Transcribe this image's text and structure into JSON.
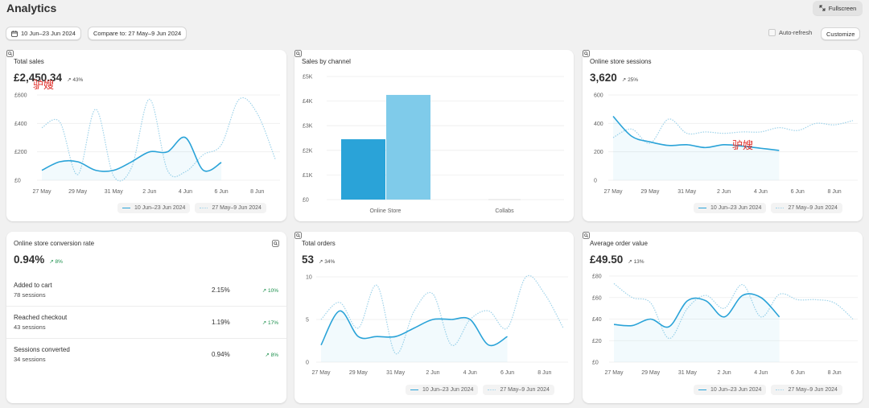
{
  "header": {
    "title": "Analytics",
    "fullscreen_label": "Fullscreen",
    "date_range": "10 Jun–23 Jun 2024",
    "compare": "Compare to: 27 May–9 Jun 2024",
    "auto_refresh": "Auto-refresh",
    "customize": "Customize"
  },
  "colors": {
    "current": "#2aa3d8",
    "previous": "#9fd3ea",
    "positive": "#1a8f4b"
  },
  "legend": {
    "current": "10 Jun–23 Jun 2024",
    "previous": "27 May–9 Jun 2024"
  },
  "watermark": "驴嫂",
  "cards": {
    "total_sales": {
      "title": "Total sales",
      "value": "£2,450.34",
      "change": "43%"
    },
    "sales_channel": {
      "title": "Sales by channel"
    },
    "sessions": {
      "title": "Online store sessions",
      "value": "3,620",
      "change": "25%"
    },
    "conversion": {
      "title": "Online store conversion rate",
      "value": "0.94%",
      "change": "8%",
      "rows": [
        {
          "label": "Added to cart",
          "sub": "78 sessions",
          "pct": "2.15%",
          "change": "10%"
        },
        {
          "label": "Reached checkout",
          "sub": "43 sessions",
          "pct": "1.19%",
          "change": "17%"
        },
        {
          "label": "Sessions converted",
          "sub": "34 sessions",
          "pct": "0.94%",
          "change": "8%"
        }
      ]
    },
    "orders": {
      "title": "Total orders",
      "value": "53",
      "change": "34%"
    },
    "aov": {
      "title": "Average order value",
      "value": "£49.50",
      "change": "13%"
    }
  },
  "chart_data": [
    {
      "id": "total_sales",
      "type": "line",
      "ylim": [
        0,
        600
      ],
      "yticks": [
        "£0",
        "£200",
        "£400",
        "£600"
      ],
      "ytick_values": [
        0,
        200,
        400,
        600
      ],
      "xticks": [
        "27 May",
        "29 May",
        "31 May",
        "2 Jun",
        "4 Jun",
        "6 Jun",
        "8 Jun"
      ],
      "series": [
        {
          "name": "10 Jun–23 Jun 2024",
          "values": [
            70,
            130,
            130,
            70,
            70,
            130,
            200,
            200,
            300,
            70,
            125
          ]
        },
        {
          "name": "27 May–9 Jun 2024",
          "values": [
            370,
            410,
            40,
            500,
            30,
            90,
            570,
            70,
            60,
            180,
            250,
            570,
            470,
            150
          ]
        }
      ]
    },
    {
      "id": "sessions",
      "type": "line",
      "ylim": [
        0,
        600
      ],
      "yticks": [
        "0",
        "200",
        "400",
        "600"
      ],
      "ytick_values": [
        0,
        200,
        400,
        600
      ],
      "xticks": [
        "27 May",
        "29 May",
        "31 May",
        "2 Jun",
        "4 Jun",
        "6 Jun",
        "8 Jun"
      ],
      "series": [
        {
          "name": "10 Jun–23 Jun 2024",
          "values": [
            450,
            310,
            270,
            245,
            250,
            230,
            250,
            240,
            225,
            210
          ]
        },
        {
          "name": "27 May–9 Jun 2024",
          "values": [
            300,
            360,
            260,
            430,
            330,
            340,
            330,
            340,
            340,
            370,
            350,
            400,
            390,
            420
          ]
        }
      ]
    },
    {
      "id": "orders",
      "type": "line",
      "ylim": [
        0,
        10
      ],
      "yticks": [
        "0",
        "5",
        "10"
      ],
      "ytick_values": [
        0,
        5,
        10
      ],
      "xticks": [
        "27 May",
        "29 May",
        "31 May",
        "2 Jun",
        "4 Jun",
        "6 Jun",
        "8 Jun"
      ],
      "series": [
        {
          "name": "10 Jun–23 Jun 2024",
          "values": [
            2,
            6,
            3,
            3,
            3,
            4,
            5,
            5,
            5,
            2,
            3
          ]
        },
        {
          "name": "27 May–9 Jun 2024",
          "values": [
            5,
            7,
            4,
            9,
            1,
            6,
            8,
            2,
            5,
            6,
            4,
            10,
            8,
            4
          ]
        }
      ]
    },
    {
      "id": "aov",
      "type": "line",
      "ylim": [
        0,
        80
      ],
      "yticks": [
        "£0",
        "£20",
        "£40",
        "£60",
        "£80"
      ],
      "ytick_values": [
        0,
        20,
        40,
        60,
        80
      ],
      "xticks": [
        "27 May",
        "29 May",
        "31 May",
        "2 Jun",
        "4 Jun",
        "6 Jun",
        "8 Jun"
      ],
      "series": [
        {
          "name": "10 Jun–23 Jun 2024",
          "values": [
            35,
            34,
            40,
            33,
            57,
            57,
            42,
            62,
            60,
            42
          ]
        },
        {
          "name": "27 May–9 Jun 2024",
          "values": [
            73,
            60,
            55,
            22,
            50,
            62,
            50,
            72,
            42,
            63,
            58,
            58,
            55,
            40
          ]
        }
      ]
    },
    {
      "id": "sales_channel",
      "type": "bar",
      "ylim": [
        0,
        5000
      ],
      "yticks": [
        "£0",
        "£1K",
        "£2K",
        "£3K",
        "£4K",
        "£5K"
      ],
      "ytick_values": [
        0,
        1000,
        2000,
        3000,
        4000,
        5000
      ],
      "categories": [
        "Online Store",
        "Collabs"
      ],
      "series": [
        {
          "name": "10 Jun–23 Jun 2024",
          "values": [
            2450,
            0
          ]
        },
        {
          "name": "27 May–9 Jun 2024",
          "values": [
            4250,
            0
          ]
        }
      ]
    }
  ]
}
